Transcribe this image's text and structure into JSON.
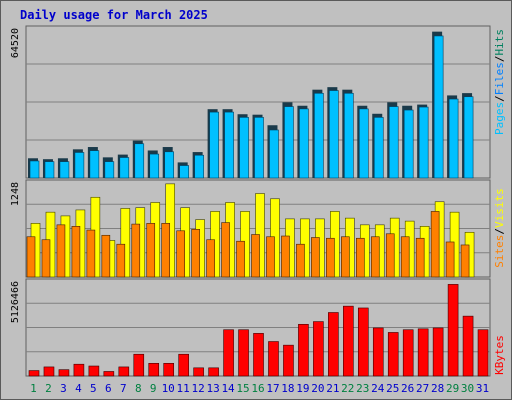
{
  "chart_data": [
    {
      "type": "bar",
      "title": "Daily usage for March 2025",
      "panel": "hits",
      "ymax_label": "64520",
      "ylim": [
        0,
        64520
      ],
      "legend": [
        "Pages",
        "Files",
        "Hits"
      ],
      "categories": [
        "1",
        "2",
        "3",
        "4",
        "5",
        "6",
        "7",
        "8",
        "9",
        "10",
        "11",
        "12",
        "13",
        "14",
        "15",
        "16",
        "17",
        "18",
        "19",
        "20",
        "21",
        "22",
        "23",
        "24",
        "25",
        "26",
        "27",
        "28",
        "29",
        "30",
        "31"
      ],
      "series": [
        {
          "name": "Pages",
          "values": [
            8600,
            8200,
            8600,
            12500,
            13500,
            9000,
            10200,
            16300,
            12000,
            13500,
            6800,
            11300,
            30000,
            30000,
            27800,
            27600,
            23000,
            33000,
            31500,
            38500,
            39600,
            38500,
            31500,
            28000,
            33000,
            31500,
            32000,
            63800,
            36000,
            37000,
            0
          ]
        },
        {
          "name": "Files",
          "values": [
            8300,
            8000,
            8000,
            12000,
            12800,
            8000,
            9800,
            15800,
            11300,
            12300,
            6300,
            10800,
            29600,
            29600,
            27300,
            27300,
            21800,
            32000,
            31000,
            37800,
            39000,
            37800,
            31000,
            27300,
            32000,
            30500,
            31800,
            62800,
            35300,
            36300,
            0
          ]
        },
        {
          "name": "Hits",
          "values": [
            8300,
            8000,
            8000,
            12000,
            12800,
            8000,
            9800,
            15800,
            11300,
            12300,
            6300,
            10800,
            29600,
            29600,
            27300,
            27300,
            21800,
            32000,
            31000,
            37800,
            39000,
            37800,
            31000,
            27300,
            32000,
            30500,
            31800,
            62800,
            35300,
            36300,
            0
          ]
        }
      ]
    },
    {
      "type": "bar",
      "panel": "visits",
      "ymax_label": "1248",
      "ylim": [
        0,
        1248
      ],
      "legend": [
        "Sites",
        "Visits"
      ],
      "categories": [
        "1",
        "2",
        "3",
        "4",
        "5",
        "6",
        "7",
        "8",
        "9",
        "10",
        "11",
        "12",
        "13",
        "14",
        "15",
        "16",
        "17",
        "18",
        "19",
        "20",
        "21",
        "22",
        "23",
        "24",
        "25",
        "26",
        "27",
        "28",
        "29",
        "30",
        "31"
      ],
      "series": [
        {
          "name": "Visits",
          "values": [
            720,
            870,
            820,
            900,
            1070,
            490,
            920,
            930,
            1000,
            1250,
            930,
            770,
            880,
            1000,
            880,
            1120,
            1050,
            780,
            780,
            780,
            880,
            790,
            700,
            700,
            790,
            750,
            680,
            1010,
            870,
            600,
            0
          ]
        },
        {
          "name": "Sites",
          "values": [
            540,
            500,
            700,
            680,
            630,
            560,
            440,
            710,
            720,
            720,
            620,
            640,
            500,
            730,
            480,
            570,
            540,
            550,
            440,
            530,
            520,
            540,
            520,
            540,
            580,
            540,
            520,
            880,
            470,
            430,
            0
          ]
        }
      ]
    },
    {
      "type": "bar",
      "panel": "kbytes",
      "ymax_label": "5126466",
      "ylim": [
        0,
        5126466
      ],
      "legend": [
        "KBytes"
      ],
      "categories": [
        "1",
        "2",
        "3",
        "4",
        "5",
        "6",
        "7",
        "8",
        "9",
        "10",
        "11",
        "12",
        "13",
        "14",
        "15",
        "16",
        "17",
        "18",
        "19",
        "20",
        "21",
        "22",
        "23",
        "24",
        "25",
        "26",
        "27",
        "28",
        "29",
        "30",
        "31"
      ],
      "series": [
        {
          "name": "KBytes",
          "values": [
            300000,
            500000,
            350000,
            650000,
            550000,
            250000,
            500000,
            1200000,
            700000,
            700000,
            1200000,
            450000,
            450000,
            2550000,
            2550000,
            2350000,
            1900000,
            1700000,
            2850000,
            3000000,
            3500000,
            3850000,
            3750000,
            2650000,
            2400000,
            2550000,
            2600000,
            2650000,
            5050000,
            3300000,
            2550000
          ]
        }
      ]
    }
  ],
  "x_labels": [
    "1",
    "2",
    "3",
    "4",
    "5",
    "6",
    "7",
    "8",
    "9",
    "10",
    "11",
    "12",
    "13",
    "14",
    "15",
    "16",
    "17",
    "18",
    "19",
    "20",
    "21",
    "22",
    "23",
    "24",
    "25",
    "26",
    "27",
    "28",
    "29",
    "30",
    "31"
  ],
  "weekend_days": [
    "1",
    "2",
    "8",
    "9",
    "15",
    "16",
    "22",
    "23",
    "29",
    "30"
  ],
  "colors": {
    "background": "#c0c0c0",
    "plot_bg": "#c0c0c0",
    "title": "#0000cc",
    "pages": "#00c0ff",
    "files": "#0080ff",
    "hits": "#00805f",
    "sites": "#ff8000",
    "visits": "#ffff00",
    "kbytes": "#ff0000",
    "weekday_label": "#0000cc",
    "weekend_label": "#008040"
  },
  "separator": "/"
}
